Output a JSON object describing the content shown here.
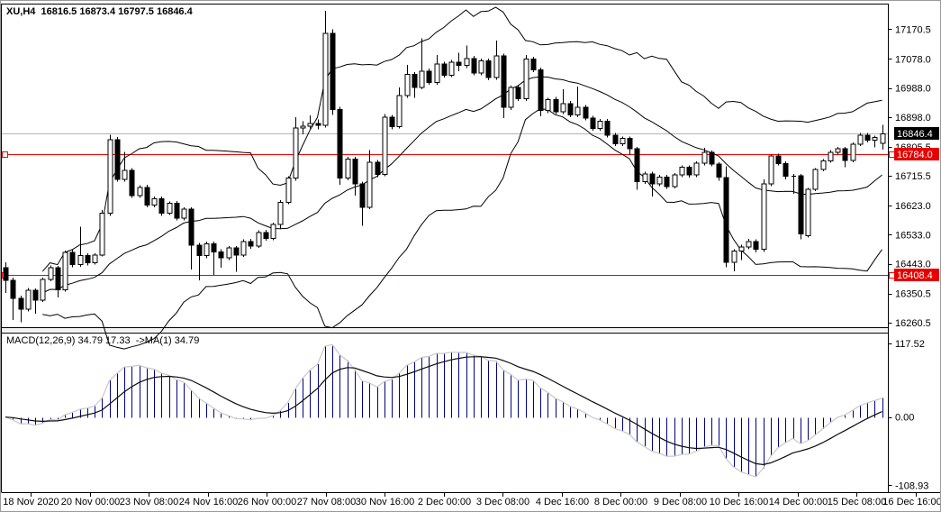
{
  "header": {
    "title": "XU,H4  16816.5 16873.4 16797.5 16846.4"
  },
  "chart_data": {
    "type": "candlestick",
    "symbol": "XU",
    "timeframe": "H4",
    "current_ohlc": {
      "open": 16816.5,
      "high": 16873.4,
      "low": 16797.5,
      "close": 16846.4
    },
    "price_axis": {
      "min": 16246,
      "max": 17236,
      "ticks": [
        "17170.5",
        "17078.0",
        "16988.0",
        "16898.0",
        "16805.5",
        "16715.5",
        "16623.0",
        "16533.0",
        "16443.0",
        "16350.5",
        "16260.5"
      ]
    },
    "time_axis": {
      "labels": [
        "18 Nov 2020",
        "20 Nov 00:00",
        "23 Nov 08:00",
        "24 Nov 16:00",
        "26 Nov 00:00",
        "27 Nov 08:00",
        "30 Nov 16:00",
        "2 Dec 00:00",
        "3 Dec 08:00",
        "4 Dec 16:00",
        "8 Dec 00:00",
        "9 Dec 08:00",
        "10 Dec 16:00",
        "14 Dec 00:00",
        "15 Dec 08:00",
        "16 Dec 16:00"
      ]
    },
    "horizontal_lines": [
      {
        "price": 16846.4,
        "label": "16846.4",
        "type": "current-price",
        "line_color": "#b4b4b4",
        "badge_bg": "#000000"
      },
      {
        "price": 16784.0,
        "label": "16784.0",
        "type": "price-level",
        "line_color": "#ff0000",
        "badge_bg": "#e60000"
      },
      {
        "price": 16408.4,
        "label": "16408.4",
        "type": "price-level",
        "line_color": "#ff0000",
        "badge_bg": "#e60000"
      }
    ],
    "candles": [
      [
        16430,
        16448,
        16352,
        16392
      ],
      [
        16392,
        16400,
        16268,
        16336
      ],
      [
        16336,
        16344,
        16262,
        16302
      ],
      [
        16302,
        16368,
        16295,
        16360
      ],
      [
        16360,
        16366,
        16288,
        16330
      ],
      [
        16330,
        16400,
        16325,
        16394
      ],
      [
        16394,
        16438,
        16388,
        16430
      ],
      [
        16430,
        16436,
        16338,
        16362
      ],
      [
        16362,
        16484,
        16356,
        16478
      ],
      [
        16478,
        16486,
        16432,
        16440
      ],
      [
        16440,
        16558,
        16434,
        16468
      ],
      [
        16468,
        16476,
        16438,
        16446
      ],
      [
        16446,
        16476,
        16440,
        16470
      ],
      [
        16470,
        16610,
        16465,
        16600
      ],
      [
        16600,
        16843,
        16592,
        16828
      ],
      [
        16828,
        16836,
        16698,
        16705
      ],
      [
        16705,
        16790,
        16698,
        16732
      ],
      [
        16732,
        16740,
        16648,
        16655
      ],
      [
        16655,
        16686,
        16648,
        16680
      ],
      [
        16680,
        16688,
        16618,
        16625
      ],
      [
        16625,
        16652,
        16618,
        16645
      ],
      [
        16645,
        16652,
        16592,
        16600
      ],
      [
        16600,
        16636,
        16594,
        16630
      ],
      [
        16630,
        16638,
        16578,
        16585
      ],
      [
        16585,
        16618,
        16578,
        16612
      ],
      [
        16612,
        16618,
        16425,
        16500
      ],
      [
        16500,
        16508,
        16392,
        16468
      ],
      [
        16468,
        16512,
        16460,
        16505
      ],
      [
        16505,
        16512,
        16408,
        16480
      ],
      [
        16480,
        16488,
        16430,
        16462
      ],
      [
        16462,
        16498,
        16455,
        16492
      ],
      [
        16492,
        16498,
        16418,
        16470
      ],
      [
        16470,
        16518,
        16464,
        16512
      ],
      [
        16512,
        16520,
        16490,
        16498
      ],
      [
        16498,
        16546,
        16492,
        16540
      ],
      [
        16540,
        16548,
        16514,
        16522
      ],
      [
        16522,
        16570,
        16516,
        16565
      ],
      [
        16565,
        16640,
        16552,
        16634
      ],
      [
        16634,
        16715,
        16628,
        16709
      ],
      [
        16709,
        16898,
        16700,
        16864
      ],
      [
        16864,
        16885,
        16845,
        16870
      ],
      [
        16870,
        16903,
        16862,
        16878
      ],
      [
        16878,
        16890,
        16860,
        16872
      ],
      [
        16872,
        17228,
        16865,
        17158
      ],
      [
        17158,
        17170,
        16905,
        16922
      ],
      [
        16922,
        16930,
        16688,
        16709
      ],
      [
        16709,
        16774,
        16702,
        16768
      ],
      [
        16768,
        16775,
        16655,
        16690
      ],
      [
        16690,
        16697,
        16560,
        16618
      ],
      [
        16618,
        16795,
        16612,
        16758
      ],
      [
        16758,
        16765,
        16712,
        16720
      ],
      [
        16720,
        16908,
        16714,
        16898
      ],
      [
        16898,
        16905,
        16860,
        16868
      ],
      [
        16868,
        16990,
        16862,
        16965
      ],
      [
        16965,
        17060,
        16958,
        17030
      ],
      [
        17030,
        17038,
        16958,
        16990
      ],
      [
        16990,
        17142,
        16984,
        17040
      ],
      [
        17040,
        17048,
        16998,
        17005
      ],
      [
        17005,
        17090,
        16998,
        17062
      ],
      [
        17062,
        17070,
        17020,
        17028
      ],
      [
        17028,
        17075,
        17022,
        17068
      ],
      [
        17068,
        17098,
        17040,
        17058
      ],
      [
        17058,
        17120,
        17050,
        17080
      ],
      [
        17080,
        17088,
        17028,
        17035
      ],
      [
        17035,
        17080,
        17028,
        17072
      ],
      [
        17072,
        17080,
        17012,
        17020
      ],
      [
        17020,
        17135,
        17014,
        17088
      ],
      [
        17088,
        17095,
        16895,
        16928
      ],
      [
        16928,
        16995,
        16920,
        16990
      ],
      [
        16990,
        16998,
        16948,
        16955
      ],
      [
        16955,
        17090,
        16948,
        17078
      ],
      [
        17078,
        17085,
        17038,
        17045
      ],
      [
        17045,
        17052,
        16900,
        16918
      ],
      [
        16918,
        16958,
        16910,
        16952
      ],
      [
        16952,
        16960,
        16908,
        16915
      ],
      [
        16915,
        16985,
        16908,
        16940
      ],
      [
        16940,
        16948,
        16898,
        16905
      ],
      [
        16905,
        16992,
        16898,
        16928
      ],
      [
        16928,
        16935,
        16888,
        16895
      ],
      [
        16895,
        16902,
        16855,
        16862
      ],
      [
        16862,
        16892,
        16855,
        16885
      ],
      [
        16885,
        16892,
        16835,
        16842
      ],
      [
        16842,
        16848,
        16808,
        16815
      ],
      [
        16815,
        16838,
        16808,
        16832
      ],
      [
        16832,
        16838,
        16780,
        16800
      ],
      [
        16800,
        16806,
        16672,
        16698
      ],
      [
        16698,
        16728,
        16690,
        16722
      ],
      [
        16722,
        16728,
        16652,
        16690
      ],
      [
        16690,
        16718,
        16684,
        16712
      ],
      [
        16712,
        16718,
        16675,
        16682
      ],
      [
        16682,
        16724,
        16676,
        16718
      ],
      [
        16718,
        16748,
        16712,
        16742
      ],
      [
        16742,
        16748,
        16710,
        16718
      ],
      [
        16718,
        16760,
        16712,
        16755
      ],
      [
        16755,
        16802,
        16748,
        16788
      ],
      [
        16788,
        16794,
        16745,
        16752
      ],
      [
        16752,
        16758,
        16700,
        16712
      ],
      [
        16710,
        16745,
        16432,
        16447
      ],
      [
        16447,
        16488,
        16420,
        16482
      ],
      [
        16482,
        16502,
        16455,
        16495
      ],
      [
        16495,
        16520,
        16488,
        16512
      ],
      [
        16512,
        16518,
        16478,
        16488
      ],
      [
        16488,
        16705,
        16480,
        16690
      ],
      [
        16690,
        16782,
        16684,
        16778
      ],
      [
        16778,
        16784,
        16748,
        16754
      ],
      [
        16754,
        16760,
        16705,
        16714
      ],
      [
        16714,
        16722,
        16660,
        16716
      ],
      [
        16716,
        16722,
        16518,
        16536
      ],
      [
        16530,
        16678,
        16524,
        16674
      ],
      [
        16674,
        16740,
        16668,
        16736
      ],
      [
        16736,
        16768,
        16730,
        16762
      ],
      [
        16762,
        16795,
        16756,
        16788
      ],
      [
        16788,
        16806,
        16782,
        16800
      ],
      [
        16800,
        16806,
        16742,
        16764
      ],
      [
        16764,
        16820,
        16758,
        16814
      ],
      [
        16814,
        16848,
        16808,
        16841
      ],
      [
        16841,
        16848,
        16820,
        16826
      ],
      [
        16826,
        16840,
        16804,
        16834
      ],
      [
        16816.5,
        16873.4,
        16797.5,
        16846.4
      ]
    ],
    "indicators": {
      "bollinger_bands": {
        "period": 20,
        "deviation": 2
      },
      "macd": {
        "fast": 12,
        "slow": 26,
        "signal_period": 9,
        "label": "MACD(12,26,9) 34.79 17.33  ->MA(1) 34.79",
        "values": {
          "macd": 34.79,
          "signal": 17.33,
          "ma": 34.79
        },
        "axis": {
          "min": -120,
          "max": 135,
          "ticks": [
            "117.52",
            "0.00",
            "-108.93"
          ]
        }
      }
    },
    "colors": {
      "background": "#ffffff",
      "panel_border": "#000000",
      "bull_body": "#ffffff",
      "bear_body": "#000000",
      "candle_outline": "#000000",
      "band_line": "#000000",
      "red_line": "#ff0000",
      "current_line": "#b4b4b4",
      "histogram": "#000080",
      "macd_line": "#c8c8c8",
      "signal_line": "#0b0b0b",
      "badge_text": "#ffffff",
      "axis_text": "#000000"
    }
  }
}
